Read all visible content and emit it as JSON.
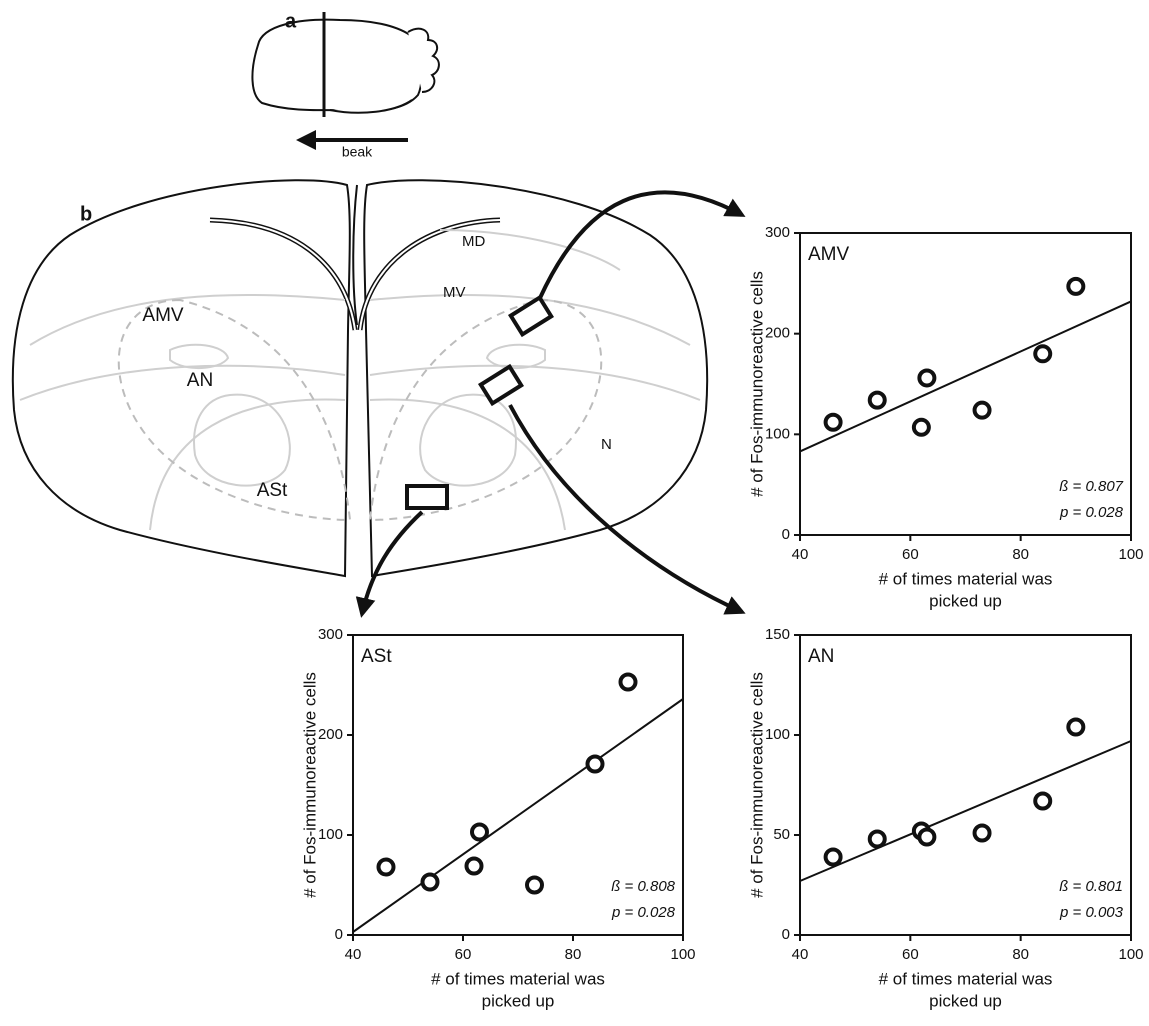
{
  "panel_labels": [
    "a",
    "b"
  ],
  "diagram": {
    "arrow_label": "beak",
    "regions": [
      "MD",
      "MV",
      "AMV",
      "AN",
      "ASt",
      "N"
    ]
  },
  "chart_data": [
    {
      "type": "scatter",
      "title": "AMV",
      "x": [
        46,
        54,
        62,
        63,
        73,
        84,
        90
      ],
      "y": [
        112,
        134,
        107,
        156,
        124,
        180,
        247
      ],
      "fit": {
        "x": [
          40,
          100
        ],
        "y": [
          83,
          232
        ]
      },
      "xlim": [
        40,
        100
      ],
      "ylim": [
        0,
        300
      ],
      "xticks": [
        40,
        60,
        80,
        100
      ],
      "yticks": [
        0,
        100,
        200,
        300
      ],
      "xlabel": [
        "# of times material was",
        "picked up"
      ],
      "ylabel": "# of Fos-immunoreactive cells",
      "annotations": [
        "ß = 0.807",
        "p = 0.028"
      ]
    },
    {
      "type": "scatter",
      "title": "ASt",
      "x": [
        46,
        54,
        62,
        63,
        73,
        84,
        90
      ],
      "y": [
        68,
        53,
        69,
        103,
        50,
        171,
        253
      ],
      "fit": {
        "x": [
          40,
          100
        ],
        "y": [
          3,
          236
        ]
      },
      "xlim": [
        40,
        100
      ],
      "ylim": [
        0,
        300
      ],
      "xticks": [
        40,
        60,
        80,
        100
      ],
      "yticks": [
        0,
        100,
        200,
        300
      ],
      "xlabel": [
        "# of times material was",
        "picked up"
      ],
      "ylabel": "# of Fos-immunoreactive cells",
      "annotations": [
        "ß = 0.808",
        "p = 0.028"
      ]
    },
    {
      "type": "scatter",
      "title": "AN",
      "x": [
        46,
        54,
        62,
        63,
        73,
        84,
        90
      ],
      "y": [
        39,
        48,
        52,
        49,
        51,
        67,
        104
      ],
      "fit": {
        "x": [
          40,
          100
        ],
        "y": [
          27,
          97
        ]
      },
      "xlim": [
        40,
        100
      ],
      "ylim": [
        0,
        150
      ],
      "xticks": [
        40,
        60,
        80,
        100
      ],
      "yticks": [
        0,
        50,
        100,
        150
      ],
      "xlabel": [
        "# of times material was",
        "picked up"
      ],
      "ylabel": "# of Fos-immunoreactive cells",
      "annotations": [
        "ß = 0.801",
        "p = 0.003"
      ]
    }
  ]
}
